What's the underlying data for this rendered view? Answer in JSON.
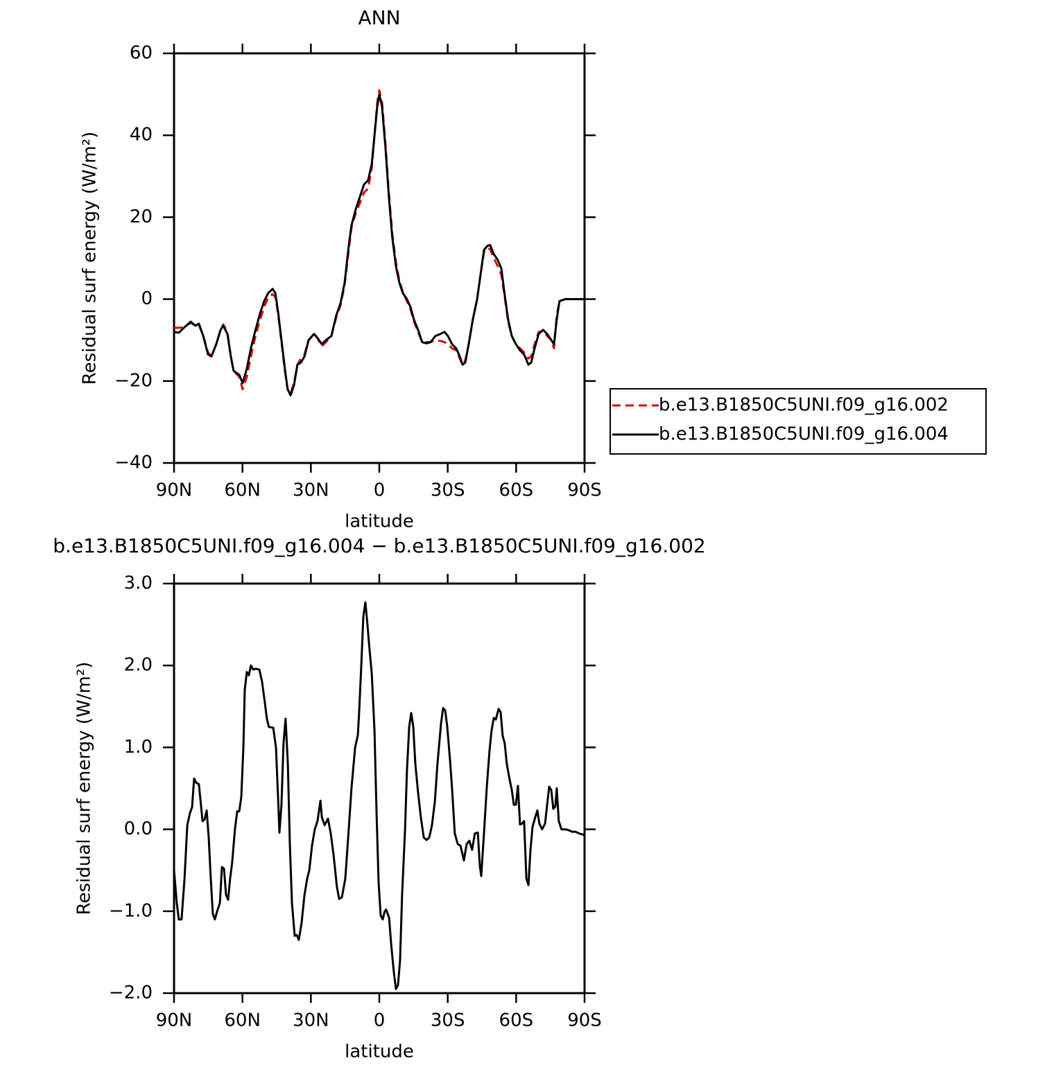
{
  "chart_data": [
    {
      "type": "line",
      "title": "ANN",
      "xlabel": "latitude",
      "ylabel": "Residual surf energy (W/m²)",
      "xlim": [
        90,
        -90
      ],
      "ylim": [
        -40,
        60
      ],
      "xticks": [
        {
          "value": 90,
          "label": "90N"
        },
        {
          "value": 60,
          "label": "60N"
        },
        {
          "value": 30,
          "label": "30N"
        },
        0,
        {
          "value": -30,
          "label": "30S"
        },
        {
          "value": -60,
          "label": "60S"
        },
        {
          "value": -90,
          "label": "90S"
        }
      ],
      "yticks": [
        {
          "value": -40,
          "label": "−40"
        },
        {
          "value": -20,
          "label": "−20"
        },
        0,
        20,
        40,
        60
      ],
      "legend": "right",
      "x": [
        90,
        87.9,
        85.7,
        82.7,
        80.6,
        79.1,
        77.2,
        75.1,
        73.6,
        71.5,
        69.6,
        68.4,
        66.6,
        65.1,
        63.9,
        61.4,
        59.9,
        58.1,
        56.3,
        54.5,
        52.3,
        50.5,
        48.7,
        46.8,
        45.6,
        44.4,
        42.9,
        41.4,
        40.2,
        38.9,
        37.4,
        35.9,
        34.4,
        32.8,
        31.0,
        28.6,
        27.1,
        25.2,
        23.4,
        21.0,
        18.9,
        17.0,
        15.2,
        13.4,
        12.2,
        10.3,
        8.5,
        6.7,
        4.9,
        3.3,
        2.1,
        0.9,
        0,
        -1.2,
        -2.7,
        -4.2,
        -5.7,
        -7.3,
        -8.8,
        -10.3,
        -12.1,
        -13.7,
        -15.2,
        -17.0,
        -18.8,
        -20.7,
        -22.5,
        -24.6,
        -26.8,
        -28.6,
        -30.1,
        -31.9,
        -33.7,
        -35.3,
        -36.5,
        -37.7,
        -39.2,
        -41.0,
        -42.9,
        -44.4,
        -45.9,
        -47.4,
        -48.6,
        -50.2,
        -52.0,
        -53.5,
        -55.0,
        -56.5,
        -58.1,
        -59.9,
        -61.7,
        -63.5,
        -65.4,
        -66.6,
        -68.1,
        -69.9,
        -71.8,
        -73.6,
        -75.4,
        -76.6,
        -77.8,
        -79.0,
        -81.5,
        -90
      ],
      "series": [
        {
          "name": "b.e13.B1850C5UNI.f09_g16.002",
          "color": "#e00000",
          "dash": true,
          "values": [
            -7,
            -7,
            -6.8,
            -5.8,
            -6.5,
            -6.3,
            -9,
            -13,
            -14,
            -11,
            -7.5,
            -6.2,
            -8,
            -14,
            -17.5,
            -19,
            -22,
            -19,
            -14,
            -9.5,
            -5,
            -2,
            0.5,
            1.2,
            0.5,
            -3.5,
            -10.5,
            -17.5,
            -22,
            -23,
            -20.5,
            -16,
            -14.5,
            -13.5,
            -10,
            -8.5,
            -9.5,
            -11.5,
            -10.5,
            -9,
            -4.5,
            -1.5,
            3.5,
            12,
            17.5,
            21,
            23.5,
            26,
            27,
            32,
            40,
            48,
            51,
            48,
            38,
            26,
            16,
            9,
            4.5,
            1.8,
            -0.5,
            -2.5,
            -5.5,
            -8,
            -10.5,
            -10.5,
            -10.5,
            -10,
            -10.2,
            -10.5,
            -11,
            -12,
            -12.5,
            -14.5,
            -16,
            -15,
            -11,
            -5,
            0,
            6,
            11.5,
            12.5,
            12.2,
            10,
            8,
            6,
            0.5,
            -5.5,
            -9,
            -11,
            -12,
            -13,
            -14.5,
            -14,
            -11,
            -8,
            -7.8,
            -9,
            -10,
            -12,
            -4,
            -0.5,
            0,
            0
          ]
        },
        {
          "name": "b.e13.B1850C5UNI.f09_g16.004",
          "color": "#000000",
          "dash": false,
          "values": [
            -8,
            -8.2,
            -7,
            -5.5,
            -6.5,
            -6,
            -9,
            -13.5,
            -14,
            -11,
            -7.5,
            -6.5,
            -8.5,
            -14,
            -17.5,
            -18.5,
            -20.5,
            -17,
            -12,
            -8,
            -3.5,
            -0.5,
            1.5,
            2.5,
            1.5,
            -3,
            -10,
            -17,
            -22,
            -23.5,
            -21,
            -16,
            -15.5,
            -14,
            -10,
            -8.5,
            -9.5,
            -11,
            -10,
            -9,
            -4,
            -1,
            4,
            13,
            18,
            22,
            25,
            28,
            29,
            33,
            40,
            47,
            50,
            47,
            37,
            25,
            15,
            8,
            4,
            1.5,
            0,
            -2,
            -5,
            -7.5,
            -10.5,
            -10.8,
            -10.5,
            -9,
            -8.5,
            -8,
            -9,
            -11,
            -12,
            -14,
            -16,
            -15.5,
            -11,
            -5,
            0,
            6,
            12,
            13,
            13.2,
            11,
            9.5,
            7.5,
            1,
            -5,
            -9,
            -11,
            -12.5,
            -13.5,
            -16,
            -15.5,
            -12,
            -8.5,
            -7.5,
            -8.5,
            -10,
            -11,
            -5,
            -0.5,
            0,
            0
          ]
        }
      ]
    },
    {
      "type": "line",
      "title": "b.e13.B1850C5UNI.f09_g16.004 − b.e13.B1850C5UNI.f09_g16.002",
      "xlabel": "latitude",
      "ylabel": "Residual surf energy (W/m²)",
      "xlim": [
        90,
        -90
      ],
      "ylim": [
        -2,
        3
      ],
      "xticks": [
        {
          "value": 90,
          "label": "90N"
        },
        {
          "value": 60,
          "label": "60N"
        },
        {
          "value": 30,
          "label": "30N"
        },
        0,
        {
          "value": -30,
          "label": "30S"
        },
        {
          "value": -60,
          "label": "60S"
        },
        {
          "value": -90,
          "label": "90S"
        }
      ],
      "yticks": [
        {
          "value": -2,
          "label": "−2.0"
        },
        {
          "value": -1,
          "label": "−1.0"
        },
        {
          "value": 0,
          "label": "0.0"
        },
        {
          "value": 1,
          "label": "1.0"
        },
        {
          "value": 2,
          "label": "2.0"
        },
        {
          "value": 3,
          "label": "3.0"
        }
      ],
      "color": "#000000",
      "x": [
        90,
        88.8,
        87.9,
        86.7,
        85.4,
        84.2,
        83.0,
        82.1,
        81.2,
        80.3,
        79.1,
        77.5,
        76.6,
        75.7,
        74.8,
        73.9,
        73.0,
        72.1,
        71.1,
        69.9,
        69.0,
        68.1,
        67.2,
        66.3,
        65.4,
        64.5,
        63.3,
        62.3,
        61.4,
        60.5,
        59.6,
        59.0,
        58.1,
        57.2,
        56.3,
        55.3,
        54.1,
        52.6,
        51.4,
        50.2,
        49.3,
        48.4,
        46.5,
        45.3,
        44.4,
        43.8,
        42.9,
        42.0,
        41.1,
        40.1,
        39.2,
        38.3,
        37.1,
        36.2,
        35.3,
        34.1,
        32.8,
        31.6,
        30.7,
        29.5,
        28.3,
        27.1,
        25.8,
        25.2,
        24.0,
        22.5,
        21.3,
        20.1,
        18.6,
        17.6,
        16.4,
        14.9,
        13.4,
        12.2,
        10.6,
        9.4,
        8.8,
        7.9,
        7.0,
        6.1,
        5.2,
        4.3,
        3.3,
        2.1,
        1.2,
        0.3,
        -0.6,
        -1.5,
        -2.4,
        -3.0,
        -4.3,
        -5.2,
        -6.4,
        -7.3,
        -8.2,
        -9.1,
        -10.0,
        -11.3,
        -12.1,
        -13.1,
        -14.0,
        -14.9,
        -15.8,
        -17.0,
        -18.2,
        -19.5,
        -20.7,
        -21.9,
        -23.1,
        -24.4,
        -25.5,
        -27.1,
        -28.0,
        -28.9,
        -29.8,
        -31.0,
        -31.9,
        -33.1,
        -34.4,
        -35.6,
        -37.1,
        -38.3,
        -39.5,
        -40.7,
        -41.9,
        -43.2,
        -44.1,
        -44.7,
        -45.9,
        -47.1,
        -48.3,
        -49.2,
        -50.2,
        -51.1,
        -52.3,
        -53.2,
        -54.1,
        -55.0,
        -55.9,
        -57.2,
        -58.1,
        -59.0,
        -59.9,
        -60.8,
        -61.7,
        -62.6,
        -63.5,
        -64.5,
        -65.4,
        -66.3,
        -67.2,
        -68.4,
        -69.3,
        -70.2,
        -71.4,
        -72.7,
        -73.6,
        -74.5,
        -75.4,
        -76.3,
        -77.2,
        -77.8,
        -78.7,
        -79.9,
        -81.5,
        -83.0,
        -84.5,
        -86.0,
        -87.6,
        -90
      ],
      "values": [
        -0.5,
        -0.9,
        -1.1,
        -1.1,
        -0.6,
        0.05,
        0.2,
        0.27,
        0.62,
        0.57,
        0.55,
        0.1,
        0.12,
        0.23,
        -0.1,
        -0.6,
        -1.03,
        -1.1,
        -1.0,
        -0.9,
        -0.46,
        -0.48,
        -0.8,
        -0.86,
        -0.6,
        -0.4,
        0.0,
        0.22,
        0.22,
        0.4,
        1.0,
        1.7,
        1.92,
        1.88,
        2.0,
        1.95,
        1.96,
        1.95,
        1.8,
        1.55,
        1.35,
        1.25,
        1.24,
        1.0,
        0.4,
        -0.04,
        0.3,
        1.05,
        1.35,
        0.8,
        -0.2,
        -0.9,
        -1.3,
        -1.29,
        -1.35,
        -1.15,
        -0.8,
        -0.6,
        -0.5,
        -0.2,
        0.0,
        0.1,
        0.35,
        0.15,
        0.05,
        0.13,
        -0.05,
        -0.3,
        -0.7,
        -0.85,
        -0.83,
        -0.6,
        0.0,
        0.5,
        1.0,
        1.15,
        1.45,
        2.0,
        2.6,
        2.77,
        2.5,
        2.2,
        1.9,
        1.2,
        0.2,
        -0.65,
        -1.05,
        -1.1,
        -1.0,
        -0.98,
        -1.08,
        -1.4,
        -1.75,
        -1.95,
        -1.9,
        -1.6,
        -0.8,
        0.0,
        0.7,
        1.25,
        1.42,
        1.25,
        0.8,
        0.45,
        0.15,
        -0.1,
        -0.13,
        -0.1,
        0.05,
        0.35,
        0.8,
        1.3,
        1.48,
        1.45,
        1.25,
        0.85,
        0.5,
        -0.05,
        -0.18,
        -0.2,
        -0.38,
        -0.18,
        -0.14,
        -0.25,
        -0.05,
        -0.04,
        -0.45,
        -0.57,
        -0.05,
        0.5,
        0.95,
        1.2,
        1.36,
        1.34,
        1.47,
        1.43,
        1.14,
        1.05,
        0.8,
        0.6,
        0.48,
        0.3,
        0.3,
        0.53,
        0.06,
        0.07,
        0.1,
        -0.6,
        -0.68,
        -0.25,
        0.03,
        0.15,
        0.23,
        0.07,
        0.0,
        0.07,
        0.3,
        0.52,
        0.48,
        0.25,
        0.28,
        0.5,
        0.1,
        0.0,
        0.0,
        -0.01,
        -0.03,
        -0.03,
        -0.05,
        -0.07
      ]
    }
  ]
}
